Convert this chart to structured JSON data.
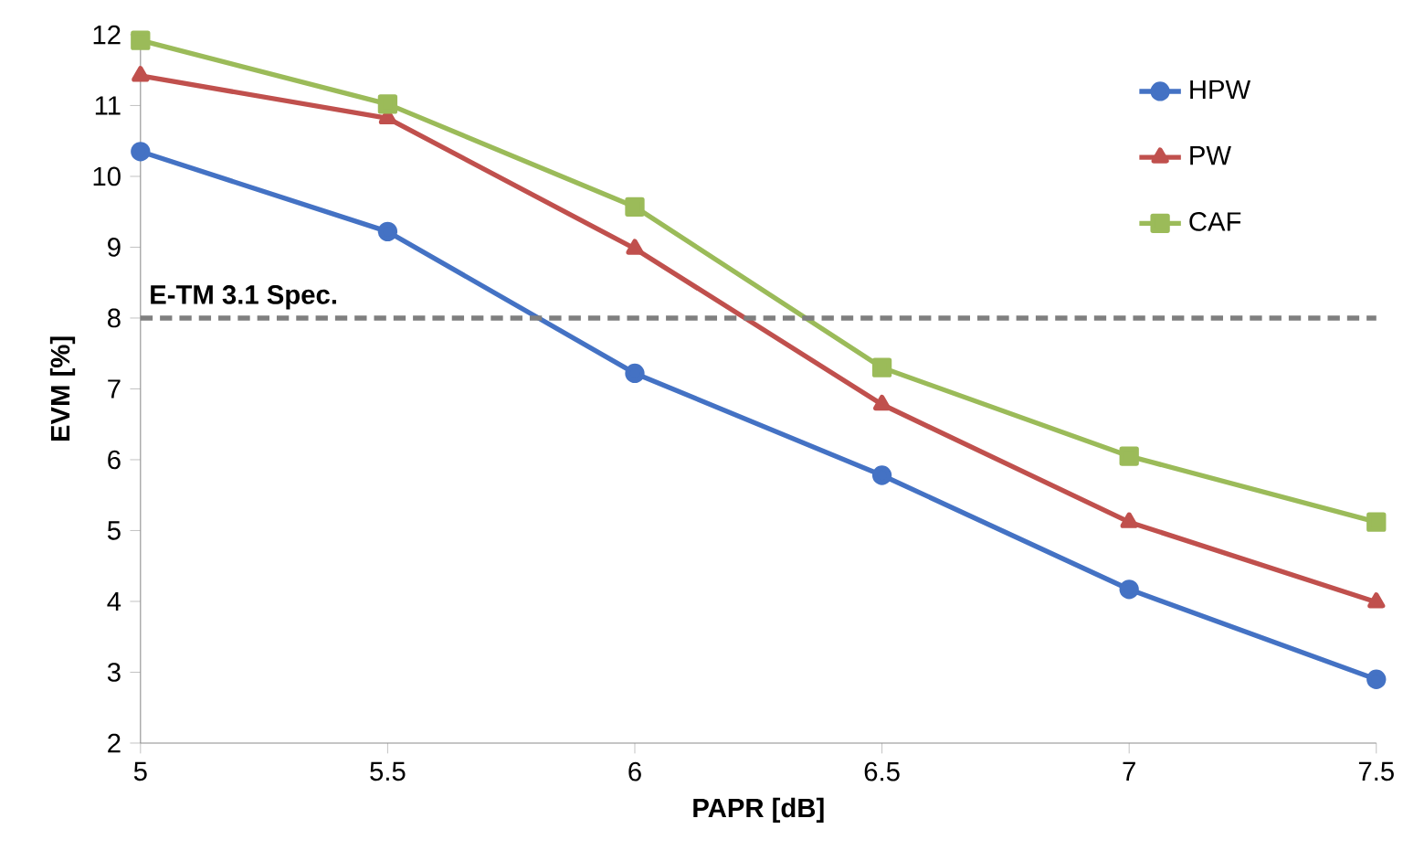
{
  "chart_data": {
    "type": "line",
    "xlabel": "PAPR [dB]",
    "ylabel": "EVM [%]",
    "x": [
      5,
      5.5,
      6,
      6.5,
      7,
      7.5
    ],
    "series": [
      {
        "name": "HPW",
        "color": "#4472c4",
        "marker": "circle",
        "values": [
          10.35,
          9.22,
          7.22,
          5.78,
          4.17,
          2.9
        ]
      },
      {
        "name": "PW",
        "color": "#c0504d",
        "marker": "triangle",
        "values": [
          11.42,
          10.82,
          8.98,
          6.78,
          5.12,
          3.99
        ]
      },
      {
        "name": "CAF",
        "color": "#9bbb59",
        "marker": "square",
        "values": [
          11.92,
          11.02,
          9.57,
          7.3,
          6.05,
          5.12
        ]
      }
    ],
    "xlim": [
      5,
      7.5
    ],
    "xticks": [
      5,
      5.5,
      6,
      6.5,
      7,
      7.5
    ],
    "ylim": [
      2,
      12
    ],
    "yticks": [
      2,
      3,
      4,
      5,
      6,
      7,
      8,
      9,
      10,
      11,
      12
    ],
    "ref_lines": [
      {
        "axis": "y",
        "value": 8,
        "label": "E-TM 3.1 Spec.",
        "color": "#7f7f7f",
        "line_style": "dashed"
      }
    ],
    "grid": false,
    "legend": "top right"
  }
}
